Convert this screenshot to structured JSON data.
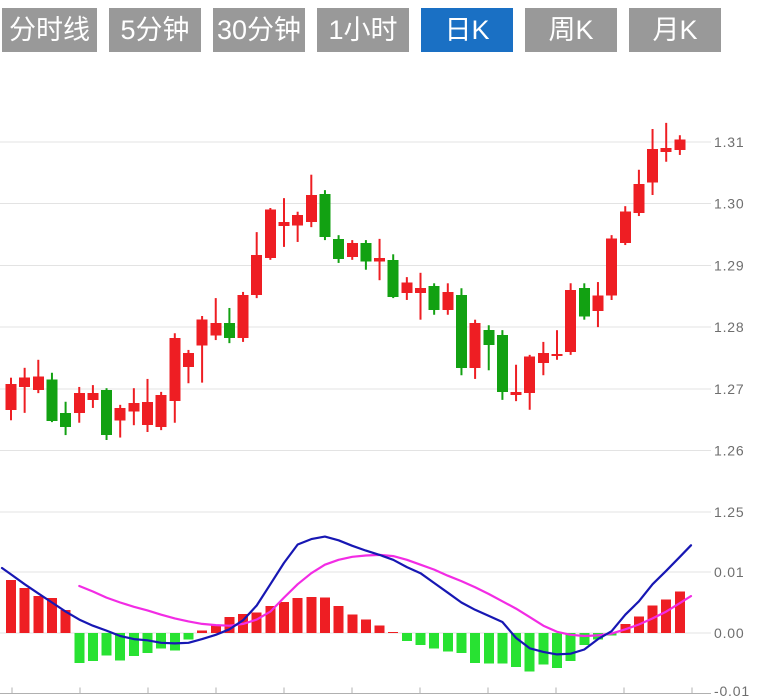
{
  "tabs": [
    {
      "id": "timeline",
      "label": "分时线",
      "active": false
    },
    {
      "id": "5min",
      "label": "5分钟",
      "active": false
    },
    {
      "id": "30min",
      "label": "30分钟",
      "active": false
    },
    {
      "id": "1hour",
      "label": "1小时",
      "active": false
    },
    {
      "id": "daily",
      "label": "日K",
      "active": true
    },
    {
      "id": "weekly",
      "label": "周K",
      "active": false
    },
    {
      "id": "monthly",
      "label": "月K",
      "active": false
    }
  ],
  "colors": {
    "up": "#ee1e23",
    "down": "#12a112",
    "hist_up": "#ee1e23",
    "hist_down": "#28e232",
    "dif_line": "#1717b3",
    "dea_line": "#f22ce4",
    "grid": "#e3e3e3",
    "axis": "#b0b0b0",
    "axis_text": "#6e6e6e",
    "tab_bg": "#999999",
    "tab_active_bg": "#1a70c4",
    "tab_text": "#ffffff"
  },
  "chart_data": {
    "type": "candlestick",
    "title": "",
    "legend_position": "none",
    "grid": true,
    "panels": [
      {
        "name": "price",
        "y_ticks": [
          {
            "label": "1.31",
            "value": 1.31
          },
          {
            "label": "1.30",
            "value": 1.3
          },
          {
            "label": "1.29",
            "value": 1.29
          },
          {
            "label": "1.28",
            "value": 1.28
          },
          {
            "label": "1.27",
            "value": 1.27
          },
          {
            "label": "1.26",
            "value": 1.26
          },
          {
            "label": "1.25",
            "value": 1.25
          }
        ],
        "ylim": [
          1.245,
          1.3185
        ],
        "candles_format": [
          "open",
          "high",
          "low",
          "close"
        ],
        "candles": [
          [
            1.2666,
            1.2718,
            1.2649,
            1.2708
          ],
          [
            1.2703,
            1.2734,
            1.2661,
            1.2718
          ],
          [
            1.2698,
            1.2747,
            1.2693,
            1.272
          ],
          [
            1.2715,
            1.2726,
            1.2646,
            1.2648
          ],
          [
            1.2661,
            1.2679,
            1.2625,
            1.2638
          ],
          [
            1.2661,
            1.2703,
            1.2645,
            1.2693
          ],
          [
            1.2682,
            1.2706,
            1.2669,
            1.2693
          ],
          [
            1.2698,
            1.2701,
            1.2617,
            1.2625
          ],
          [
            1.2649,
            1.2674,
            1.2621,
            1.2669
          ],
          [
            1.2663,
            1.2701,
            1.2641,
            1.2677
          ],
          [
            1.2641,
            1.2716,
            1.263,
            1.2679
          ],
          [
            1.2638,
            1.2695,
            1.2633,
            1.269
          ],
          [
            1.268,
            1.279,
            1.2645,
            1.2782
          ],
          [
            1.2735,
            1.2763,
            1.2709,
            1.2758
          ],
          [
            1.277,
            1.2818,
            1.271,
            1.2812
          ],
          [
            1.2786,
            1.2847,
            1.2779,
            1.2807
          ],
          [
            1.2807,
            1.2831,
            1.2774,
            1.2782
          ],
          [
            1.2782,
            1.2857,
            1.2776,
            1.2852
          ],
          [
            1.2852,
            1.2954,
            1.2847,
            1.2917
          ],
          [
            1.2912,
            1.2993,
            1.2909,
            1.2991
          ],
          [
            1.2964,
            1.3009,
            1.293,
            1.297
          ],
          [
            1.2965,
            1.2987,
            1.2938,
            1.2982
          ],
          [
            1.297,
            1.3047,
            1.2962,
            1.3014
          ],
          [
            1.3016,
            1.3022,
            1.2941,
            1.2946
          ],
          [
            1.2943,
            1.2949,
            1.2904,
            1.291
          ],
          [
            1.2914,
            1.2941,
            1.2909,
            1.2936
          ],
          [
            1.2936,
            1.2941,
            1.2893,
            1.2906
          ],
          [
            1.2906,
            1.2943,
            1.2876,
            1.2912
          ],
          [
            1.2909,
            1.2918,
            1.2847,
            1.2849
          ],
          [
            1.2855,
            1.2881,
            1.2844,
            1.2872
          ],
          [
            1.2855,
            1.2888,
            1.2812,
            1.2863
          ],
          [
            1.2867,
            1.2871,
            1.282,
            1.2828
          ],
          [
            1.2828,
            1.2871,
            1.282,
            1.2857
          ],
          [
            1.2852,
            1.2863,
            1.2722,
            1.2734
          ],
          [
            1.2734,
            1.2812,
            1.2716,
            1.2807
          ],
          [
            1.2795,
            1.2803,
            1.273,
            1.2771
          ],
          [
            1.2787,
            1.2795,
            1.2682,
            1.2695
          ],
          [
            1.269,
            1.2739,
            1.268,
            1.2695
          ],
          [
            1.2693,
            1.2755,
            1.2666,
            1.2752
          ],
          [
            1.2742,
            1.2776,
            1.2722,
            1.2758
          ],
          [
            1.2753,
            1.2795,
            1.2747,
            1.2756
          ],
          [
            1.276,
            1.2871,
            1.2755,
            1.286
          ],
          [
            1.2863,
            1.2871,
            1.2812,
            1.2817
          ],
          [
            1.2826,
            1.2873,
            1.28,
            1.2851
          ],
          [
            1.2851,
            1.2949,
            1.2844,
            1.2944
          ],
          [
            1.2936,
            1.2996,
            1.2933,
            1.2987
          ],
          [
            1.2985,
            1.3055,
            1.298,
            1.3032
          ],
          [
            1.3034,
            1.3121,
            1.3014,
            1.3089
          ],
          [
            1.3084,
            1.3131,
            1.3068,
            1.309
          ],
          [
            1.3087,
            1.3111,
            1.3079,
            1.3104
          ]
        ]
      },
      {
        "name": "macd",
        "y_ticks": [
          {
            "label": "0.01",
            "value": 0.01
          },
          {
            "label": "0.00",
            "value": 0.0
          },
          {
            "label": "-0.01",
            "value": -0.01
          }
        ],
        "ylim": [
          -0.011,
          0.0175
        ],
        "histogram": [
          0.0087,
          0.0074,
          0.0061,
          0.0057,
          0.0038,
          -0.0049,
          -0.0046,
          -0.0037,
          -0.0045,
          -0.0038,
          -0.0033,
          -0.0025,
          -0.0029,
          -0.0011,
          0.0004,
          0.0013,
          0.0026,
          0.0031,
          0.0034,
          0.0044,
          0.0051,
          0.0057,
          0.0059,
          0.0058,
          0.0044,
          0.003,
          0.0022,
          0.0012,
          0.0002,
          -0.0013,
          -0.002,
          -0.0025,
          -0.003,
          -0.0033,
          -0.0049,
          -0.005,
          -0.005,
          -0.0056,
          -0.0063,
          -0.0052,
          -0.0057,
          -0.0046,
          -0.002,
          -0.0011,
          -0.0004,
          0.0015,
          0.0027,
          0.0045,
          0.0055,
          0.0068
        ],
        "series": [
          {
            "name": "DIF",
            "color_key": "dif_line",
            "values": [
              0.0096,
              0.008,
              0.0065,
              0.005,
              0.0035,
              0.0022,
              0.0012,
              0.0004,
              -0.0005,
              -0.001,
              -0.0012,
              -0.0016,
              -0.0017,
              -0.0016,
              -0.001,
              -0.0003,
              0.0006,
              0.0021,
              0.0045,
              0.008,
              0.0115,
              0.0145,
              0.0154,
              0.0158,
              0.0152,
              0.0143,
              0.0135,
              0.0128,
              0.012,
              0.0108,
              0.0098,
              0.0082,
              0.0066,
              0.005,
              0.0038,
              0.0028,
              0.0018,
              -0.0008,
              -0.0025,
              -0.0031,
              -0.0035,
              -0.0034,
              -0.0027,
              -0.001,
              0.0003,
              0.003,
              0.0052,
              0.008,
              0.0102,
              0.0125
            ]
          },
          {
            "name": "DEA",
            "color_key": "dea_line",
            "values": [
              null,
              null,
              null,
              null,
              null,
              0.0077,
              0.0068,
              0.0058,
              0.005,
              0.0043,
              0.0037,
              0.003,
              0.0024,
              0.0019,
              0.0015,
              0.0013,
              0.0012,
              0.0015,
              0.0022,
              0.0035,
              0.0058,
              0.008,
              0.0098,
              0.0112,
              0.012,
              0.0125,
              0.0127,
              0.0128,
              0.0126,
              0.012,
              0.0112,
              0.0104,
              0.0094,
              0.0085,
              0.0075,
              0.0064,
              0.0052,
              0.004,
              0.0026,
              0.0012,
              0.0002,
              -0.0003,
              -0.0005,
              -0.0004,
              -0.0001,
              0.0006,
              0.0014,
              0.0024,
              0.0035,
              0.0049
            ]
          }
        ]
      }
    ]
  }
}
